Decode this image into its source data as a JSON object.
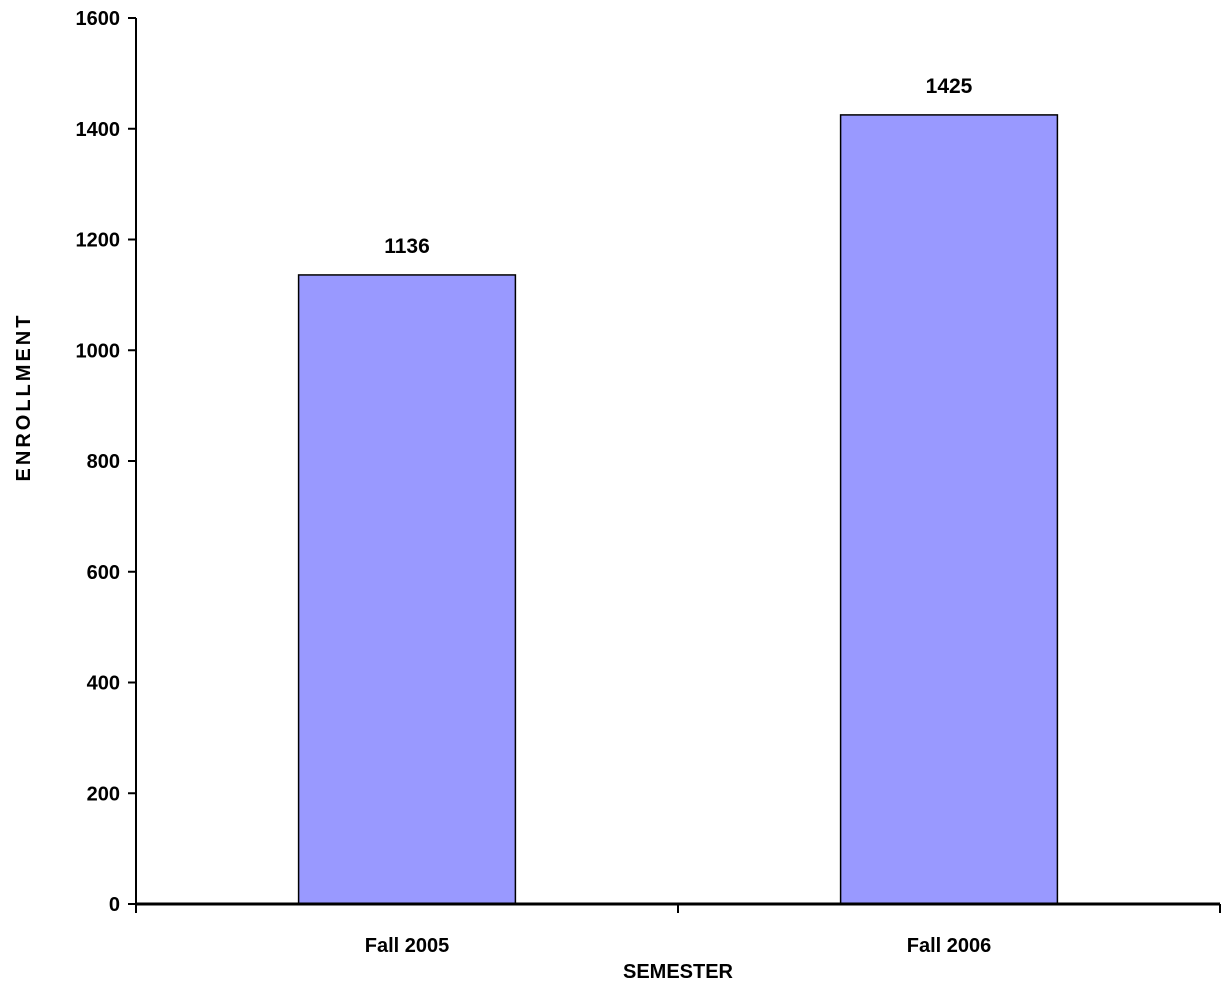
{
  "chart_data": {
    "type": "bar",
    "categories": [
      "Fall 2005",
      "Fall 2006"
    ],
    "values": [
      1136,
      1425
    ],
    "data_labels": [
      "1136",
      "1425"
    ],
    "xlabel": "SEMESTER",
    "ylabel": "ENROLLMENT",
    "ylim": [
      0,
      1600
    ],
    "yticks": [
      "0",
      "200",
      "400",
      "600",
      "800",
      "1000",
      "1200",
      "1400",
      "1600"
    ],
    "grid": false,
    "legend": "none",
    "bar_color": "#9999ff",
    "bar_edge_color": "#000000"
  }
}
